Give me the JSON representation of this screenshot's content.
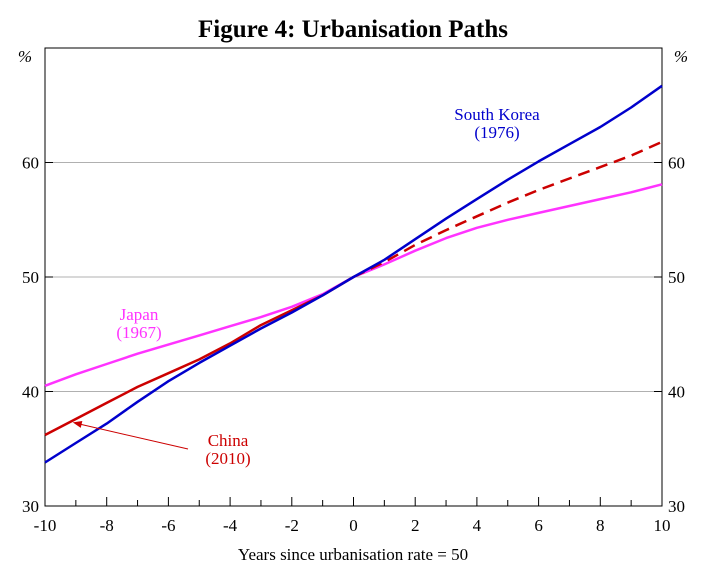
{
  "chart_data": {
    "type": "line",
    "title": "Figure 4: Urbanisation Paths",
    "xlabel": "Years since urbanisation rate = 50",
    "ylabel_left": "%",
    "ylabel_right": "%",
    "xlim": [
      -10,
      10
    ],
    "ylim": [
      30,
      70
    ],
    "xticks": [
      -10,
      -8,
      -6,
      -4,
      -2,
      0,
      2,
      4,
      6,
      8,
      10
    ],
    "xtick_labels": [
      "-10",
      "-8",
      "-6",
      "-4",
      "-2",
      "0",
      "2",
      "4",
      "6",
      "8",
      "10"
    ],
    "yticks": [
      30,
      40,
      50,
      60
    ],
    "ytick_labels": [
      "30",
      "40",
      "50",
      "60"
    ],
    "gridlines_y": [
      40,
      50,
      60
    ],
    "series": [
      {
        "name": "South Korea",
        "label_lines": [
          "South Korea",
          "(1976)"
        ],
        "color": "#0000cc",
        "style": "solid",
        "x": [
          -10,
          -9,
          -8,
          -7,
          -6,
          -5,
          -4,
          -3,
          -2,
          -1,
          0,
          1,
          2,
          3,
          4,
          5,
          6,
          7,
          8,
          9,
          10
        ],
        "values": [
          33.8,
          35.5,
          37.2,
          39.1,
          40.9,
          42.5,
          44.0,
          45.5,
          46.9,
          48.4,
          50.0,
          51.5,
          53.3,
          55.1,
          56.8,
          58.5,
          60.1,
          61.6,
          63.1,
          64.8,
          66.7
        ]
      },
      {
        "name": "Japan",
        "label_lines": [
          "Japan",
          "(1967)"
        ],
        "color": "#ff33ff",
        "style": "solid",
        "x": [
          -10,
          -9,
          -8,
          -7,
          -6,
          -5,
          -4,
          -3,
          -2,
          -1,
          0,
          1,
          2,
          3,
          4,
          5,
          6,
          7,
          8,
          9,
          10
        ],
        "values": [
          40.5,
          41.5,
          42.4,
          43.3,
          44.1,
          44.9,
          45.7,
          46.5,
          47.4,
          48.5,
          50.0,
          51.1,
          52.3,
          53.4,
          54.3,
          55.0,
          55.6,
          56.2,
          56.8,
          57.4,
          58.1
        ]
      },
      {
        "name": "China",
        "label_lines": [
          "China",
          "(2010)"
        ],
        "color": "#cc0000",
        "style": "solid",
        "x": [
          -10,
          -9,
          -8,
          -7,
          -6,
          -5,
          -4,
          -3,
          -2,
          -1,
          0
        ],
        "values": [
          36.2,
          37.6,
          39.0,
          40.4,
          41.6,
          42.8,
          44.2,
          45.8,
          47.1,
          48.4,
          50.0
        ]
      },
      {
        "name": "China (projected)",
        "color": "#cc0000",
        "style": "dashed",
        "x": [
          0,
          1,
          2,
          3,
          4,
          5,
          6,
          7,
          8,
          9,
          10
        ],
        "values": [
          50.0,
          51.3,
          52.8,
          54.1,
          55.3,
          56.5,
          57.6,
          58.6,
          59.6,
          60.6,
          61.8
        ]
      }
    ],
    "annotation": {
      "text_series": "China",
      "arrow_to_x": -9.1,
      "arrow_to_y": 37.3
    }
  }
}
